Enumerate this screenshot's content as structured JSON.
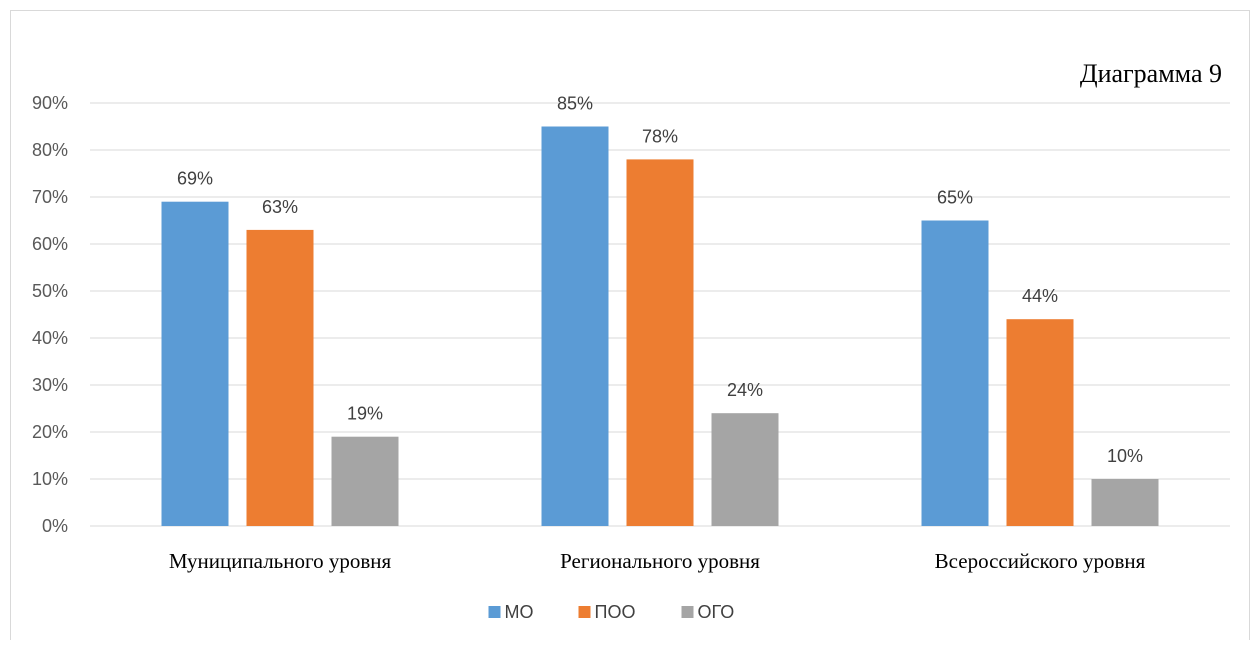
{
  "chart_data": {
    "type": "bar",
    "title": "Диаграмма 9",
    "categories": [
      "Муниципального уровня",
      "Регионального уровня",
      "Всероссийского уровня"
    ],
    "series": [
      {
        "name": "МО",
        "values": [
          69,
          85,
          65
        ],
        "color": "#5b9bd5"
      },
      {
        "name": "ПОО",
        "values": [
          63,
          78,
          44
        ],
        "color": "#ed7d31"
      },
      {
        "name": "ОГО",
        "values": [
          19,
          24,
          10
        ],
        "color": "#a5a5a5"
      }
    ],
    "ylim": [
      0,
      90
    ],
    "yticks": [
      "0%",
      "10%",
      "20%",
      "30%",
      "40%",
      "50%",
      "60%",
      "70%",
      "80%",
      "90%"
    ],
    "value_suffix": "%",
    "grid": true,
    "legend_position": "bottom"
  }
}
